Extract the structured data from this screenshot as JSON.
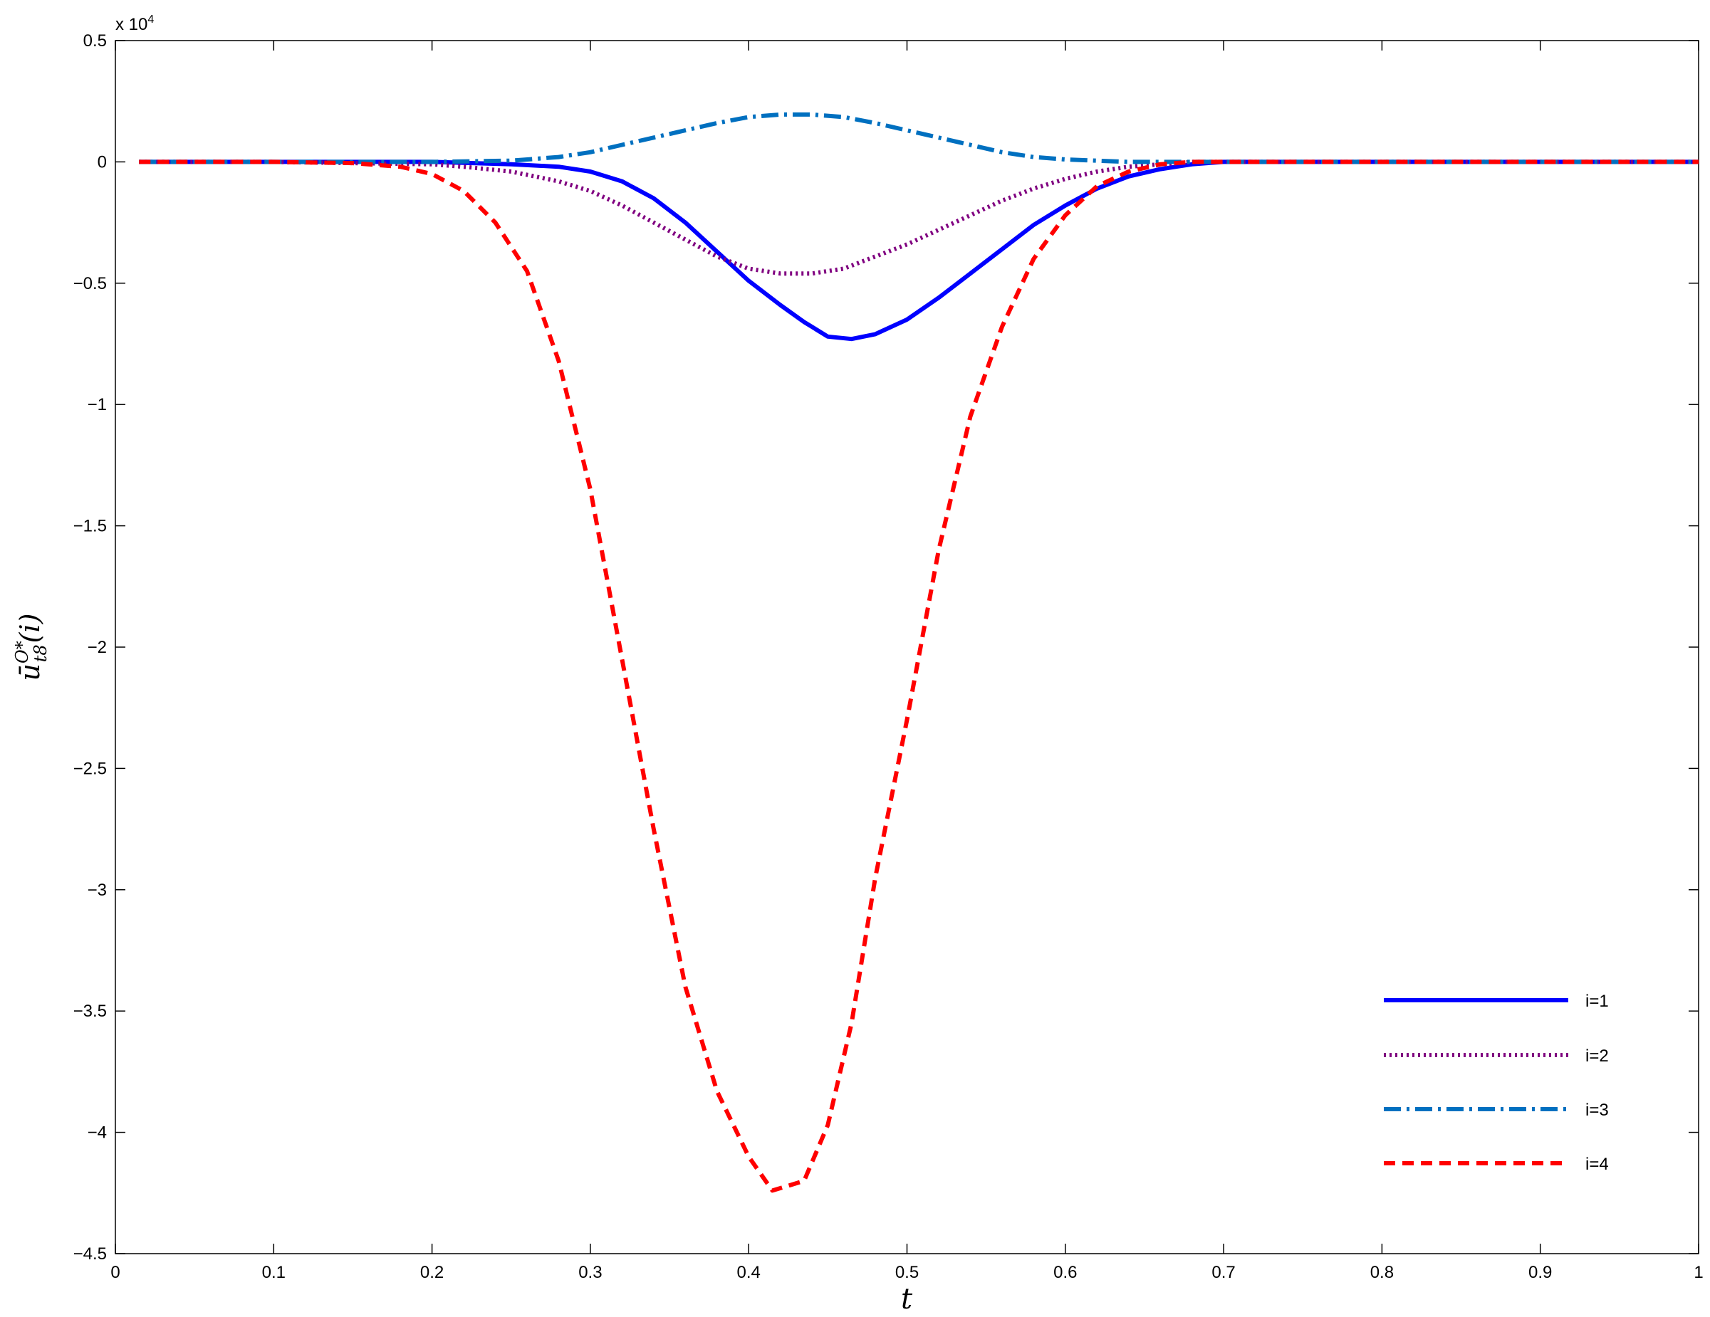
{
  "chart_data": {
    "type": "line",
    "xlabel": "t",
    "ylabel_base": "ū",
    "ylabel_sup": "O*",
    "ylabel_sub": "t8",
    "ylabel_arg": "(i)",
    "y_multiplier_base": "x 10",
    "y_multiplier_exp": "4",
    "xlim": [
      0,
      1
    ],
    "ylim": [
      -4.5,
      0.5
    ],
    "xticks": [
      0,
      0.1,
      0.2,
      0.3,
      0.4,
      0.5,
      0.6,
      0.7,
      0.8,
      0.9,
      1
    ],
    "xtick_labels": [
      "0",
      "0.1",
      "0.2",
      "0.3",
      "0.4",
      "0.5",
      "0.6",
      "0.7",
      "0.8",
      "0.9",
      "1"
    ],
    "yticks": [
      0.5,
      0,
      -0.5,
      -1,
      -1.5,
      -2,
      -2.5,
      -3,
      -3.5,
      -4,
      -4.5
    ],
    "ytick_labels": [
      "0.5",
      "0",
      "−0.5",
      "−1",
      "−1.5",
      "−2",
      "−2.5",
      "−3",
      "−3.5",
      "−4",
      "−4.5"
    ],
    "grid": false,
    "legend_position": "bottom-right",
    "series": [
      {
        "name": "i=1",
        "color": "#0000ff",
        "style": "solid",
        "x": [
          0.015,
          0.1,
          0.2,
          0.25,
          0.28,
          0.3,
          0.32,
          0.34,
          0.36,
          0.38,
          0.4,
          0.42,
          0.435,
          0.45,
          0.465,
          0.48,
          0.5,
          0.52,
          0.54,
          0.56,
          0.58,
          0.6,
          0.62,
          0.64,
          0.66,
          0.68,
          0.7,
          0.8,
          0.9,
          1.0
        ],
        "y": [
          0,
          0,
          0,
          -0.01,
          -0.02,
          -0.04,
          -0.08,
          -0.15,
          -0.25,
          -0.37,
          -0.49,
          -0.59,
          -0.66,
          -0.72,
          -0.73,
          -0.71,
          -0.65,
          -0.56,
          -0.46,
          -0.36,
          -0.26,
          -0.18,
          -0.11,
          -0.06,
          -0.03,
          -0.01,
          0,
          0,
          0,
          0
        ]
      },
      {
        "name": "i=2",
        "color": "#800080",
        "style": "dotted",
        "x": [
          0.015,
          0.1,
          0.2,
          0.22,
          0.25,
          0.28,
          0.3,
          0.32,
          0.34,
          0.36,
          0.38,
          0.4,
          0.42,
          0.44,
          0.46,
          0.48,
          0.5,
          0.52,
          0.54,
          0.56,
          0.58,
          0.6,
          0.62,
          0.64,
          0.66,
          0.68,
          0.7,
          0.8,
          0.9,
          1.0
        ],
        "y": [
          0,
          0,
          -0.01,
          -0.02,
          -0.04,
          -0.08,
          -0.12,
          -0.18,
          -0.25,
          -0.32,
          -0.39,
          -0.44,
          -0.46,
          -0.46,
          -0.44,
          -0.39,
          -0.34,
          -0.28,
          -0.22,
          -0.16,
          -0.11,
          -0.07,
          -0.04,
          -0.02,
          -0.01,
          0,
          0,
          0,
          0,
          0
        ]
      },
      {
        "name": "i=3",
        "color": "#0070c0",
        "style": "dashdot",
        "x": [
          0.015,
          0.1,
          0.2,
          0.25,
          0.28,
          0.3,
          0.32,
          0.34,
          0.36,
          0.38,
          0.4,
          0.42,
          0.44,
          0.46,
          0.48,
          0.5,
          0.52,
          0.54,
          0.56,
          0.58,
          0.6,
          0.62,
          0.64,
          0.66,
          0.7,
          0.8,
          0.9,
          1.0
        ],
        "y": [
          0,
          0,
          0,
          0.005,
          0.02,
          0.04,
          0.07,
          0.1,
          0.13,
          0.16,
          0.185,
          0.195,
          0.195,
          0.185,
          0.16,
          0.13,
          0.1,
          0.07,
          0.04,
          0.02,
          0.01,
          0.005,
          0,
          0,
          0,
          0,
          0,
          0
        ]
      },
      {
        "name": "i=4",
        "color": "#ff0000",
        "style": "dashed",
        "x": [
          0.015,
          0.1,
          0.15,
          0.18,
          0.2,
          0.22,
          0.24,
          0.26,
          0.28,
          0.3,
          0.32,
          0.34,
          0.36,
          0.38,
          0.4,
          0.415,
          0.435,
          0.45,
          0.465,
          0.48,
          0.5,
          0.52,
          0.54,
          0.56,
          0.58,
          0.6,
          0.62,
          0.64,
          0.66,
          0.68,
          0.7,
          0.8,
          0.9,
          1.0
        ],
        "y": [
          0,
          0,
          -0.005,
          -0.02,
          -0.05,
          -0.12,
          -0.25,
          -0.45,
          -0.82,
          -1.35,
          -2.05,
          -2.75,
          -3.4,
          -3.83,
          -4.1,
          -4.24,
          -4.2,
          -3.97,
          -3.55,
          -2.95,
          -2.3,
          -1.6,
          -1.05,
          -0.68,
          -0.4,
          -0.22,
          -0.1,
          -0.04,
          -0.01,
          0,
          0,
          0,
          0,
          0
        ]
      }
    ]
  }
}
